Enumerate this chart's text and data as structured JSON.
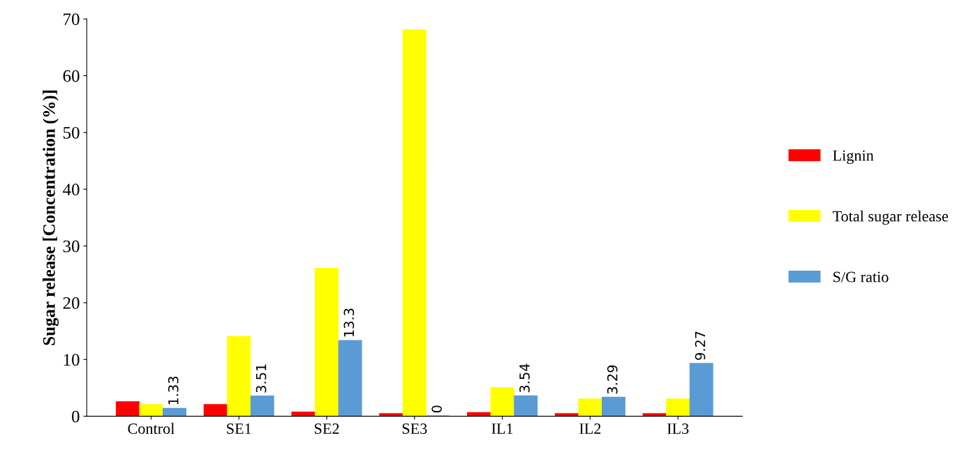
{
  "chart_data": {
    "type": "bar",
    "ylabel": "Sugar release [Concentration (%)]",
    "categories": [
      "Control",
      "SE1",
      "SE2",
      "SE3",
      "IL1",
      "IL2",
      "IL3"
    ],
    "series": [
      {
        "name": "Lignin",
        "color": "#ff0000",
        "values": [
          2.5,
          2,
          0.7,
          0.4,
          0.6,
          0.4,
          0.4
        ]
      },
      {
        "name": "Total sugar release",
        "color": "#ffff00",
        "values": [
          2,
          14,
          26,
          68,
          5,
          3,
          3
        ]
      },
      {
        "name": "S/G ratio",
        "color": "#5b9bd5",
        "values": [
          1.33,
          3.51,
          13.3,
          0,
          3.54,
          3.29,
          9.27
        ],
        "value_labels": [
          "1.33",
          "3.51",
          "13.3",
          "0",
          "3.54",
          "3.29",
          "9.27"
        ]
      }
    ],
    "ylim": [
      0,
      70
    ],
    "yticks": [
      0,
      10,
      20,
      30,
      40,
      50,
      60,
      70
    ],
    "grid": false,
    "legend": "right"
  }
}
